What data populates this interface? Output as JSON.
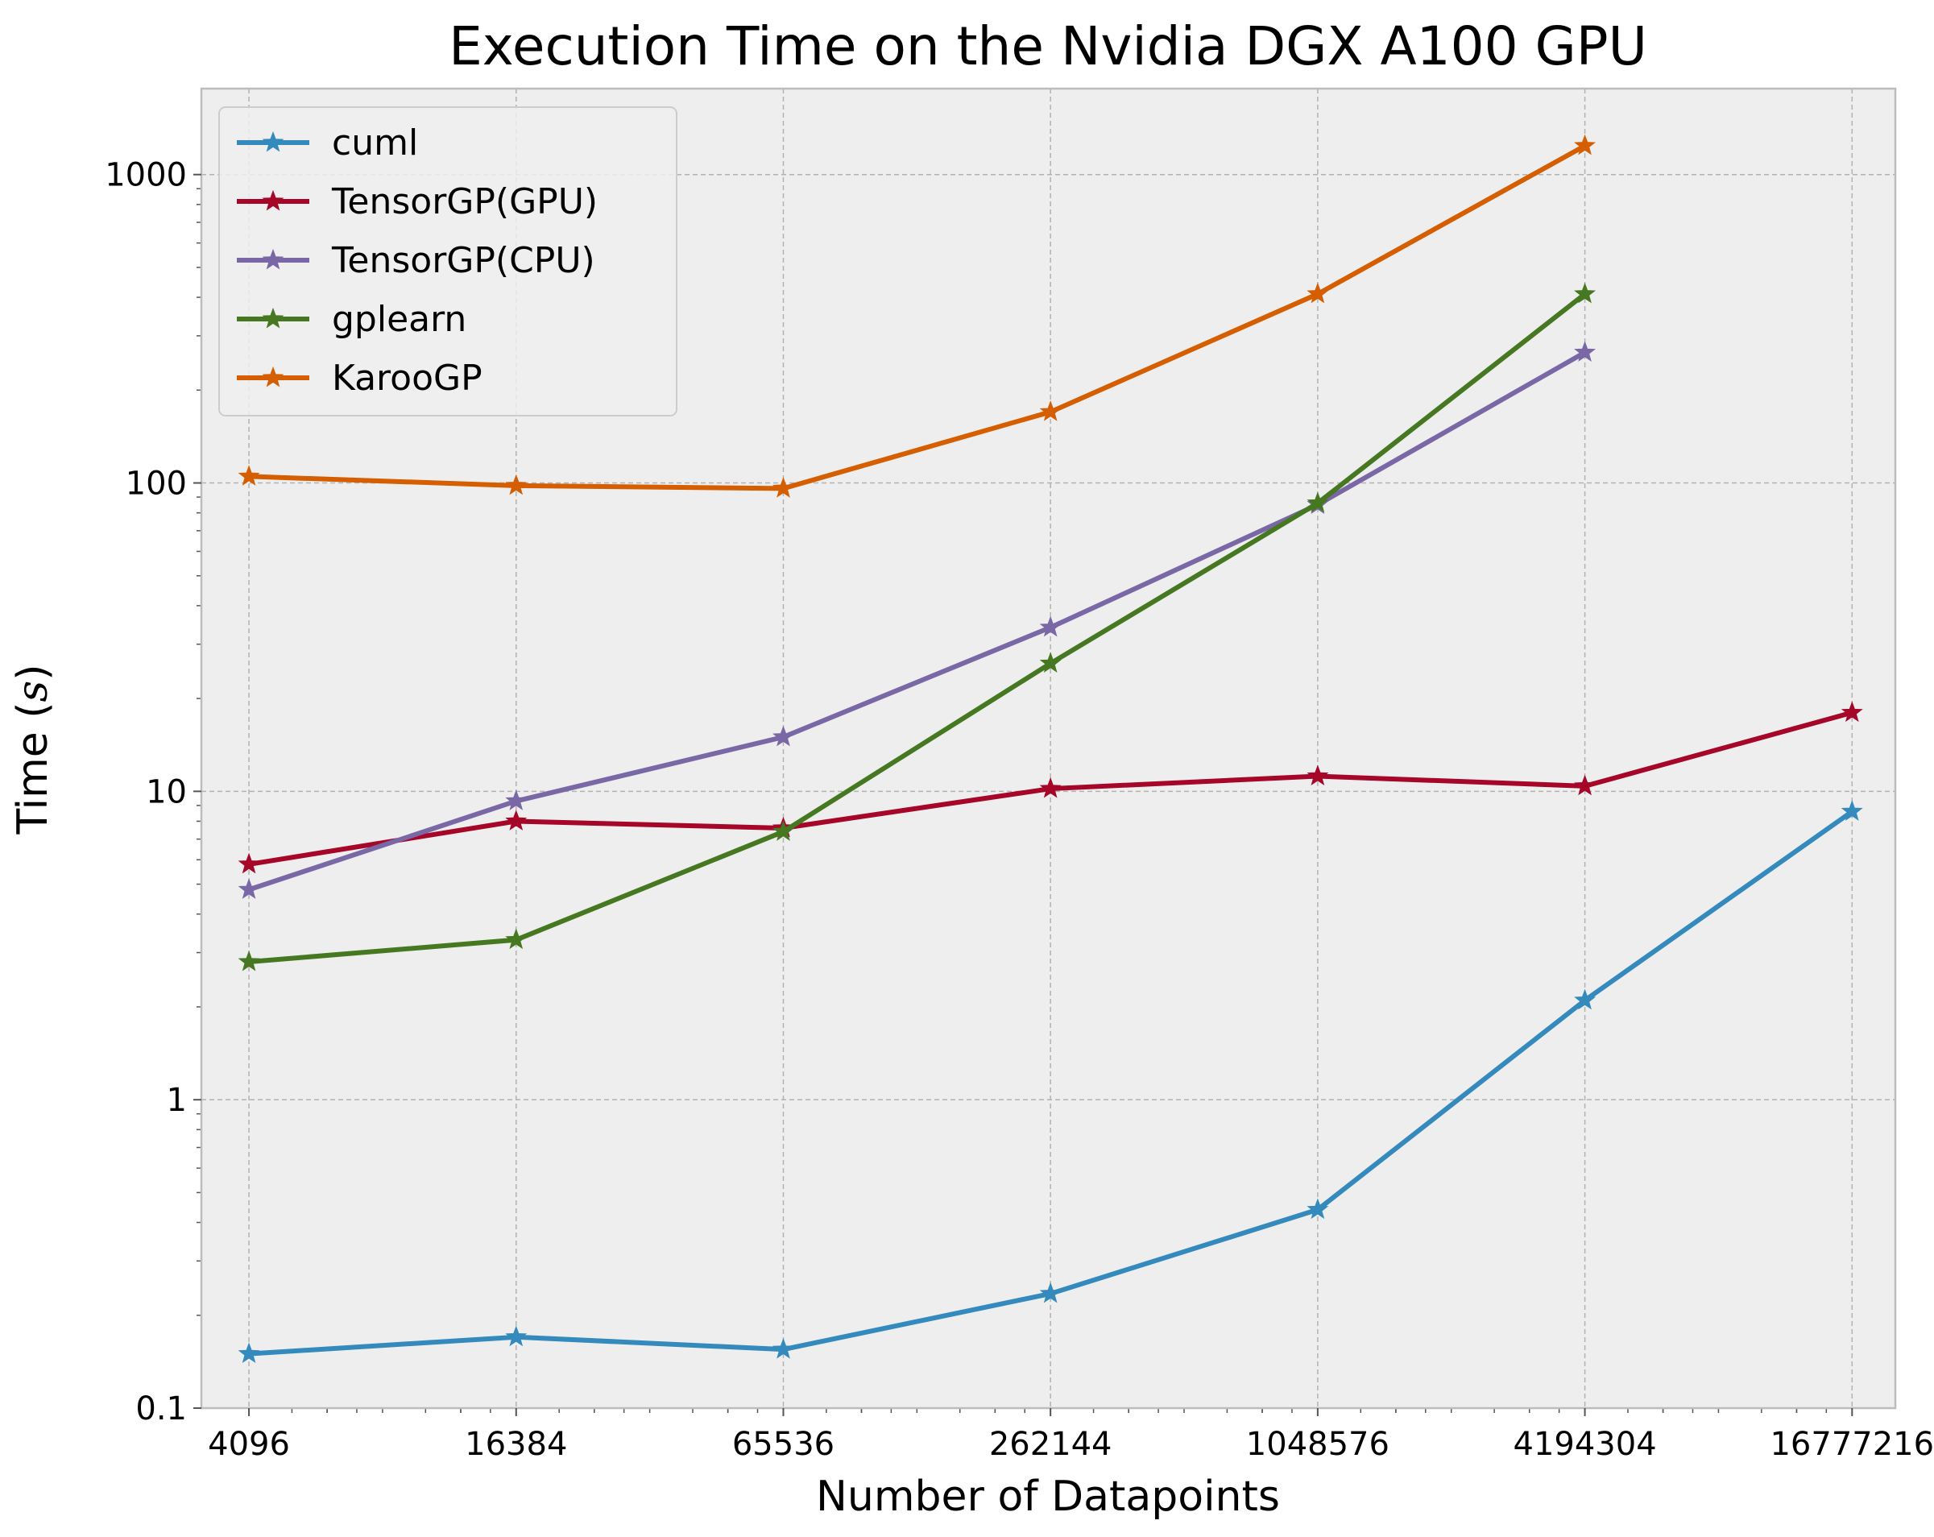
{
  "chart_data": {
    "type": "line",
    "title": "Execution Time on the Nvidia DGX A100 GPU",
    "xlabel": "Number of Datapoints",
    "ylabel": "Time (",
    "ylabel_symbol": "s",
    "ylabel_suffix": ")",
    "x_scale": "log2",
    "y_scale": "log10",
    "xlim": [
      3200,
      21000000
    ],
    "ylim": [
      0.1,
      1900
    ],
    "grid": true,
    "legend_position": "top-left",
    "x_ticks": [
      4096,
      16384,
      65536,
      262144,
      1048576,
      4194304,
      16777216
    ],
    "x_tick_labels": [
      "4096",
      "16384",
      "65536",
      "262144",
      "1048576",
      "4194304",
      "16777216"
    ],
    "y_ticks": [
      0.1,
      1,
      10,
      100,
      1000
    ],
    "y_tick_labels": [
      "0.1",
      "1",
      "10",
      "100",
      "1000"
    ],
    "series": [
      {
        "name": "cuml",
        "color": "#348abd",
        "x": [
          4096,
          16384,
          65536,
          262144,
          1048576,
          4194304,
          16777216
        ],
        "y": [
          0.15,
          0.17,
          0.155,
          0.235,
          0.44,
          2.1,
          8.6
        ]
      },
      {
        "name": "TensorGP(GPU)",
        "color": "#a60628",
        "x": [
          4096,
          16384,
          65536,
          262144,
          1048576,
          4194304,
          16777216
        ],
        "y": [
          5.8,
          8.0,
          7.6,
          10.2,
          11.2,
          10.4,
          18.0
        ]
      },
      {
        "name": "TensorGP(CPU)",
        "color": "#7a68a6",
        "x": [
          4096,
          16384,
          65536,
          262144,
          1048576,
          4194304
        ],
        "y": [
          4.8,
          9.3,
          15.0,
          34.0,
          85.0,
          265.0
        ]
      },
      {
        "name": "gplearn",
        "color": "#467821",
        "x": [
          4096,
          16384,
          65536,
          262144,
          1048576,
          4194304
        ],
        "y": [
          2.8,
          3.3,
          7.4,
          26.0,
          86.0,
          410.0
        ]
      },
      {
        "name": "KarooGP",
        "color": "#d55e00",
        "x": [
          4096,
          16384,
          65536,
          262144,
          1048576,
          4194304
        ],
        "y": [
          105.0,
          98.0,
          96.0,
          170.0,
          410.0,
          1240.0
        ]
      }
    ]
  }
}
